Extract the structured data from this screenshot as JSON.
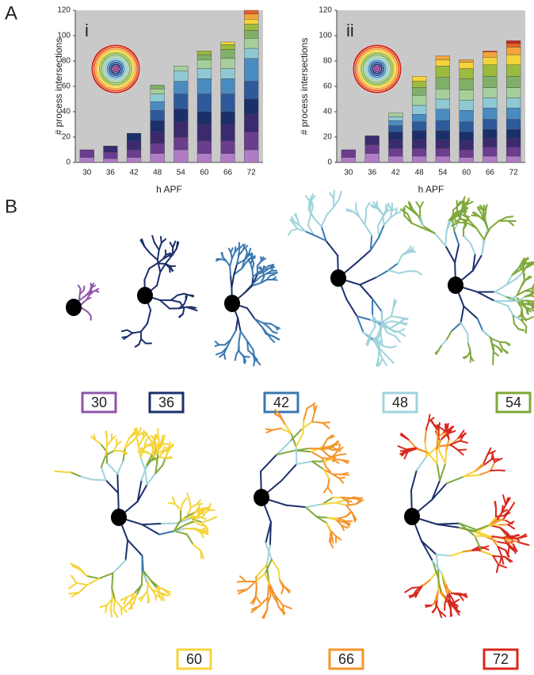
{
  "panel_labels": [
    "A",
    "B"
  ],
  "chart_data": [
    {
      "type": "bar",
      "label": "i",
      "y_label": "# process intersections",
      "x_label": "h APF",
      "categories": [
        "30",
        "36",
        "42",
        "48",
        "54",
        "60",
        "66",
        "72"
      ],
      "ylim": [
        0,
        120
      ],
      "yticks": [
        0,
        20,
        40,
        60,
        80,
        100,
        120
      ],
      "grid": false,
      "series": [
        {
          "color": "#b07cc6",
          "values": [
            4,
            3,
            4,
            7,
            10,
            7,
            7,
            10
          ]
        },
        {
          "color": "#6a3d8f",
          "values": [
            6,
            5,
            6,
            8,
            10,
            10,
            10,
            14
          ]
        },
        {
          "color": "#3b2a6e",
          "values": [
            null,
            5,
            7,
            9,
            12,
            13,
            13,
            14
          ]
        },
        {
          "color": "#1b2f6b",
          "values": [
            null,
            null,
            6,
            9,
            10,
            10,
            10,
            12
          ]
        },
        {
          "color": "#2e5a9c",
          "values": [
            null,
            null,
            null,
            8,
            12,
            14,
            14,
            14
          ]
        },
        {
          "color": "#4a8bc0",
          "values": [
            null,
            null,
            null,
            7,
            10,
            12,
            12,
            18
          ]
        },
        {
          "color": "#8fc9d3",
          "values": [
            null,
            null,
            null,
            6,
            8,
            8,
            8,
            8
          ]
        },
        {
          "color": "#a6cf9c",
          "values": [
            null,
            null,
            null,
            4,
            4,
            7,
            8,
            8
          ]
        },
        {
          "color": "#7fb069",
          "values": [
            null,
            null,
            null,
            3,
            null,
            4,
            7,
            6
          ]
        },
        {
          "color": "#9bbb3c",
          "values": [
            null,
            null,
            null,
            null,
            null,
            3,
            4,
            5
          ]
        },
        {
          "color": "#f5d43a",
          "values": [
            null,
            null,
            null,
            null,
            null,
            null,
            2,
            4
          ]
        },
        {
          "color": "#f4a43a",
          "values": [
            null,
            null,
            null,
            null,
            null,
            null,
            null,
            4
          ]
        },
        {
          "color": "#e8602a",
          "values": [
            null,
            null,
            null,
            null,
            null,
            null,
            null,
            3
          ]
        }
      ]
    },
    {
      "type": "bar",
      "label": "ii",
      "y_label": "# process intersections",
      "x_label": "h APF",
      "categories": [
        "30",
        "36",
        "42",
        "48",
        "54",
        "60",
        "66",
        "72"
      ],
      "ylim": [
        0,
        120
      ],
      "yticks": [
        0,
        20,
        40,
        60,
        80,
        100,
        120
      ],
      "grid": false,
      "series": [
        {
          "color": "#b07cc6",
          "values": [
            4,
            7,
            5,
            5,
            5,
            4,
            5,
            5
          ]
        },
        {
          "color": "#6a3d8f",
          "values": [
            6,
            7,
            6,
            6,
            6,
            6,
            7,
            7
          ]
        },
        {
          "color": "#3b2a6e",
          "values": [
            null,
            7,
            7,
            7,
            7,
            7,
            7,
            7
          ]
        },
        {
          "color": "#1b2f6b",
          "values": [
            null,
            null,
            6,
            7,
            7,
            7,
            7,
            7
          ]
        },
        {
          "color": "#2e5a9c",
          "values": [
            null,
            null,
            5,
            7,
            8,
            8,
            8,
            8
          ]
        },
        {
          "color": "#4a8bc0",
          "values": [
            null,
            null,
            4,
            6,
            9,
            9,
            9,
            9
          ]
        },
        {
          "color": "#8fc9d3",
          "values": [
            null,
            null,
            3,
            7,
            8,
            8,
            8,
            8
          ]
        },
        {
          "color": "#a6cf9c",
          "values": [
            null,
            null,
            3,
            8,
            8,
            8,
            8,
            8
          ]
        },
        {
          "color": "#7fb069",
          "values": [
            null,
            null,
            null,
            6,
            9,
            9,
            9,
            9
          ]
        },
        {
          "color": "#9bbb3c",
          "values": [
            null,
            null,
            null,
            5,
            9,
            8,
            9,
            9
          ]
        },
        {
          "color": "#f5d43a",
          "values": [
            null,
            null,
            null,
            4,
            5,
            5,
            6,
            8
          ]
        },
        {
          "color": "#f4a43a",
          "values": [
            null,
            null,
            null,
            null,
            3,
            2,
            4,
            6
          ]
        },
        {
          "color": "#e8602a",
          "values": [
            null,
            null,
            null,
            null,
            null,
            null,
            1,
            3
          ]
        },
        {
          "color": "#c8281e",
          "values": [
            null,
            null,
            null,
            null,
            null,
            null,
            null,
            2
          ]
        }
      ]
    }
  ],
  "stages": [
    {
      "label": "30",
      "color": "#8e55a8"
    },
    {
      "label": "36",
      "color": "#1b2f6b"
    },
    {
      "label": "42",
      "color": "#3a78b0"
    },
    {
      "label": "48",
      "color": "#9fd3dc"
    },
    {
      "label": "54",
      "color": "#7fa83a"
    },
    {
      "label": "60",
      "color": "#f5d43a"
    },
    {
      "label": "66",
      "color": "#f4942a"
    },
    {
      "label": "72",
      "color": "#d8281e"
    }
  ]
}
